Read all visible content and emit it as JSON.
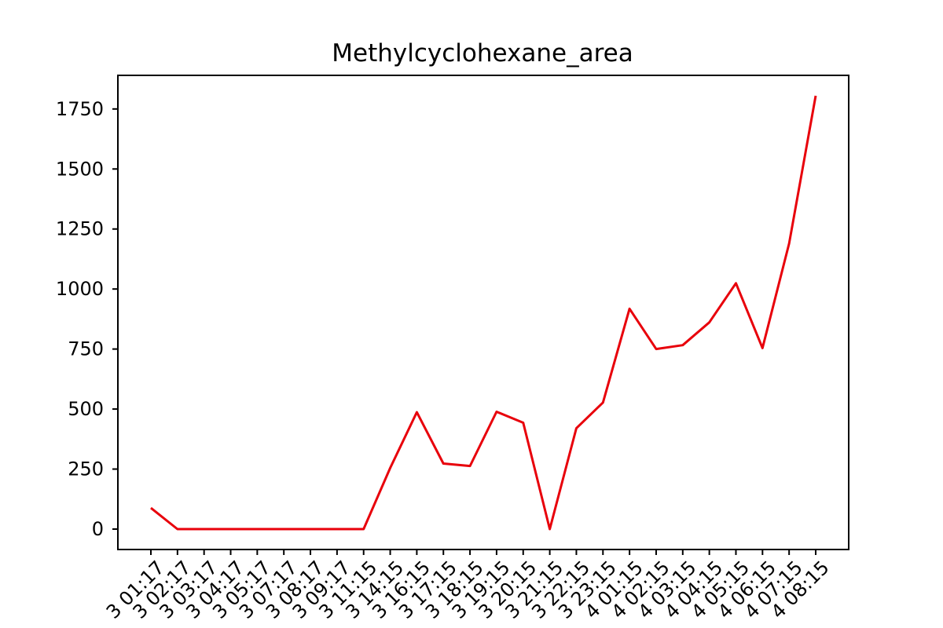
{
  "chart_data": {
    "type": "line",
    "title": "Methylcyclohexane_area",
    "xlabel": "",
    "ylabel": "",
    "ylim": [
      -85,
      1890
    ],
    "yticks": [
      0,
      250,
      500,
      750,
      1000,
      1250,
      1500,
      1750
    ],
    "grid": false,
    "categories": [
      "3 01:17",
      "3 02:17",
      "3 03:17",
      "3 04:17",
      "3 05:17",
      "3 07:17",
      "3 08:17",
      "3 09:17",
      "3 11:15",
      "3 14:15",
      "3 16:15",
      "3 17:15",
      "3 18:15",
      "3 19:15",
      "3 20:15",
      "3 21:15",
      "3 22:15",
      "3 23:15",
      "4 01:15",
      "4 02:15",
      "4 03:15",
      "4 04:15",
      "4 05:15",
      "4 06:15",
      "4 07:15",
      "4 08:15"
    ],
    "series": [
      {
        "color": "#e8000b",
        "values": [
          88,
          0,
          0,
          0,
          0,
          0,
          0,
          0,
          0,
          255,
          487,
          273,
          263,
          489,
          443,
          0,
          420,
          527,
          918,
          750,
          766,
          861,
          1024,
          754,
          1190,
          1805
        ]
      }
    ]
  }
}
